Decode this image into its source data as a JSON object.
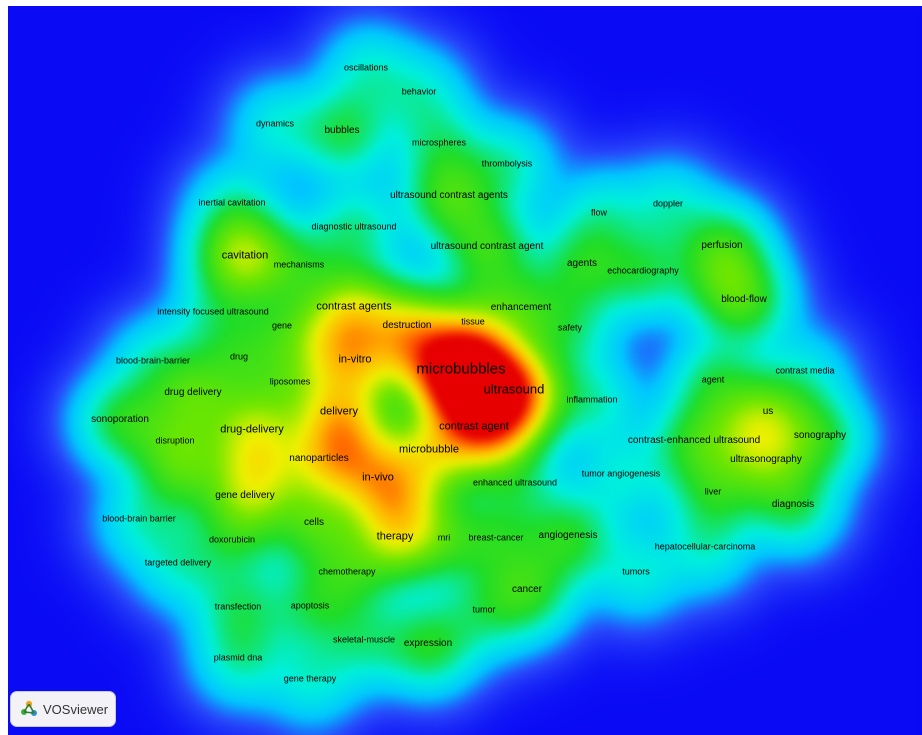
{
  "app": {
    "name": "VOSviewer",
    "logo_icon": "vosviewer-logo-icon"
  },
  "map": {
    "view": "density visualization",
    "colors": {
      "background": "#0a0af5",
      "low": "#00ffff",
      "mid": "#22dd00",
      "high": "#ffff00",
      "peak": "#ff0000"
    }
  },
  "terms": [
    {
      "label": "oscillations"
    },
    {
      "label": "behavior"
    },
    {
      "label": "dynamics"
    },
    {
      "label": "bubbles"
    },
    {
      "label": "microspheres"
    },
    {
      "label": "thrombolysis"
    },
    {
      "label": "ultrasound contrast agents"
    },
    {
      "label": "inertial cavitation"
    },
    {
      "label": "flow"
    },
    {
      "label": "doppler"
    },
    {
      "label": "diagnostic ultrasound"
    },
    {
      "label": "ultrasound contrast agent"
    },
    {
      "label": "perfusion"
    },
    {
      "label": "cavitation"
    },
    {
      "label": "mechanisms"
    },
    {
      "label": "agents"
    },
    {
      "label": "echocardiography"
    },
    {
      "label": "contrast agents"
    },
    {
      "label": "enhancement"
    },
    {
      "label": "blood-flow"
    },
    {
      "label": "intensity focused ultrasound"
    },
    {
      "label": "gene"
    },
    {
      "label": "destruction"
    },
    {
      "label": "tissue"
    },
    {
      "label": "safety"
    },
    {
      "label": "blood-brain-barrier"
    },
    {
      "label": "drug"
    },
    {
      "label": "in-vitro"
    },
    {
      "label": "microbubbles"
    },
    {
      "label": "contrast media"
    },
    {
      "label": "liposomes"
    },
    {
      "label": "ultrasound"
    },
    {
      "label": "agent"
    },
    {
      "label": "drug delivery"
    },
    {
      "label": "inflammation"
    },
    {
      "label": "delivery"
    },
    {
      "label": "us"
    },
    {
      "label": "sonoporation"
    },
    {
      "label": "contrast agent"
    },
    {
      "label": "drug-delivery"
    },
    {
      "label": "sonography"
    },
    {
      "label": "contrast-enhanced ultrasound"
    },
    {
      "label": "disruption"
    },
    {
      "label": "microbubble"
    },
    {
      "label": "nanoparticles"
    },
    {
      "label": "ultrasonography"
    },
    {
      "label": "tumor angiogenesis"
    },
    {
      "label": "in-vivo"
    },
    {
      "label": "enhanced ultrasound"
    },
    {
      "label": "liver"
    },
    {
      "label": "gene delivery"
    },
    {
      "label": "diagnosis"
    },
    {
      "label": "blood-brain barrier"
    },
    {
      "label": "cells"
    },
    {
      "label": "therapy"
    },
    {
      "label": "mri"
    },
    {
      "label": "breast-cancer"
    },
    {
      "label": "angiogenesis"
    },
    {
      "label": "doxorubicin"
    },
    {
      "label": "hepatocellular-carcinoma"
    },
    {
      "label": "targeted delivery"
    },
    {
      "label": "chemotherapy"
    },
    {
      "label": "tumors"
    },
    {
      "label": "cancer"
    },
    {
      "label": "transfection"
    },
    {
      "label": "apoptosis"
    },
    {
      "label": "tumor"
    },
    {
      "label": "skeletal-muscle"
    },
    {
      "label": "expression"
    },
    {
      "label": "plasmid dna"
    },
    {
      "label": "gene therapy"
    }
  ]
}
